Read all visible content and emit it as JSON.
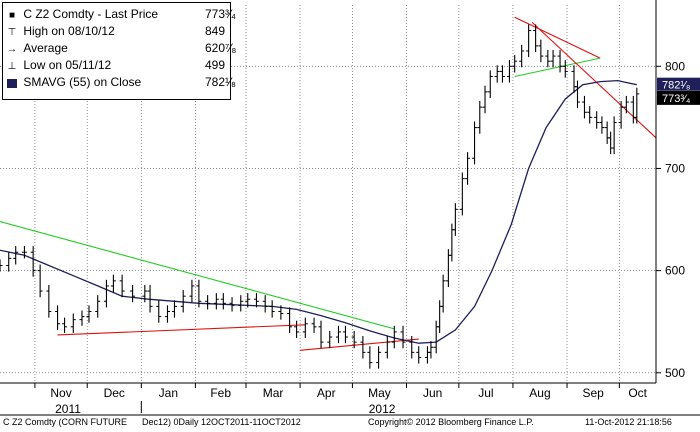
{
  "chart_data": {
    "type": "line",
    "title": "C Z2 Comdty - Last Price",
    "last_price_label": "773³⁄₄",
    "sma_label": "782¹⁄₈",
    "y_axis": {
      "min": 490,
      "max": 860,
      "ticks": [
        500,
        600,
        700,
        800
      ],
      "position": "right"
    },
    "x_axis": {
      "months": [
        "Nov",
        "Dec",
        "Jan",
        "Feb",
        "Mar",
        "Apr",
        "May",
        "Jun",
        "Jul",
        "Aug",
        "Sep",
        "Oct"
      ],
      "years": [
        "2011",
        "2012"
      ]
    },
    "grid": true,
    "legend": {
      "placement": "top-left",
      "entries": [
        {
          "symbol": "⊤",
          "label": "High on 08/10/12",
          "value": "849"
        },
        {
          "symbol": "→",
          "label": "Average",
          "value": "620⁷⁄₈"
        },
        {
          "symbol": "⊥",
          "label": "Low on 05/11/12",
          "value": "499"
        },
        {
          "symbol": "swatch",
          "label": "SMAVG (55) on Close",
          "value": "782¹⁄₈"
        }
      ]
    },
    "colors": {
      "price": "#000000",
      "sma": "#1f1f5a",
      "trend_green": "#22cc22",
      "trend_red": "#dd1111",
      "grid": "#777777"
    },
    "series": [
      {
        "name": "C Z2 Comdty - Last Price",
        "kind": "ohlc",
        "points": [
          [
            "2011-10-12",
            605
          ],
          [
            "2011-10-17",
            612
          ],
          [
            "2011-10-21",
            618
          ],
          [
            "2011-10-26",
            618
          ],
          [
            "2011-10-31",
            600
          ],
          [
            "2011-11-04",
            580
          ],
          [
            "2011-11-09",
            560
          ],
          [
            "2011-11-14",
            548
          ],
          [
            "2011-11-18",
            545
          ],
          [
            "2011-11-23",
            552
          ],
          [
            "2011-11-28",
            555
          ],
          [
            "2011-12-02",
            560
          ],
          [
            "2011-12-07",
            570
          ],
          [
            "2011-12-12",
            585
          ],
          [
            "2011-12-16",
            590
          ],
          [
            "2011-12-21",
            580
          ],
          [
            "2011-12-27",
            575
          ],
          [
            "2012-01-03",
            580
          ],
          [
            "2012-01-06",
            565
          ],
          [
            "2012-01-11",
            555
          ],
          [
            "2012-01-16",
            560
          ],
          [
            "2012-01-20",
            565
          ],
          [
            "2012-01-25",
            575
          ],
          [
            "2012-01-30",
            585
          ],
          [
            "2012-02-03",
            570
          ],
          [
            "2012-02-08",
            568
          ],
          [
            "2012-02-13",
            572
          ],
          [
            "2012-02-17",
            568
          ],
          [
            "2012-02-22",
            566
          ],
          [
            "2012-02-27",
            570
          ],
          [
            "2012-03-02",
            572
          ],
          [
            "2012-03-07",
            570
          ],
          [
            "2012-03-12",
            565
          ],
          [
            "2012-03-16",
            560
          ],
          [
            "2012-03-21",
            558
          ],
          [
            "2012-03-26",
            545
          ],
          [
            "2012-03-30",
            540
          ],
          [
            "2012-04-04",
            548
          ],
          [
            "2012-04-09",
            545
          ],
          [
            "2012-04-13",
            530
          ],
          [
            "2012-04-18",
            535
          ],
          [
            "2012-04-23",
            540
          ],
          [
            "2012-04-27",
            535
          ],
          [
            "2012-05-02",
            530
          ],
          [
            "2012-05-07",
            520
          ],
          [
            "2012-05-11",
            510
          ],
          [
            "2012-05-16",
            520
          ],
          [
            "2012-05-21",
            530
          ],
          [
            "2012-05-25",
            540
          ],
          [
            "2012-05-30",
            530
          ],
          [
            "2012-06-04",
            520
          ],
          [
            "2012-06-08",
            515
          ],
          [
            "2012-06-13",
            520
          ],
          [
            "2012-06-15",
            525
          ],
          [
            "2012-06-18",
            545
          ],
          [
            "2012-06-20",
            565
          ],
          [
            "2012-06-22",
            590
          ],
          [
            "2012-06-25",
            615
          ],
          [
            "2012-06-27",
            640
          ],
          [
            "2012-06-29",
            660
          ],
          [
            "2012-07-03",
            690
          ],
          [
            "2012-07-06",
            710
          ],
          [
            "2012-07-10",
            740
          ],
          [
            "2012-07-13",
            760
          ],
          [
            "2012-07-16",
            775
          ],
          [
            "2012-07-19",
            790
          ],
          [
            "2012-07-23",
            795
          ],
          [
            "2012-07-26",
            790
          ],
          [
            "2012-07-30",
            800
          ],
          [
            "2012-08-02",
            805
          ],
          [
            "2012-08-06",
            815
          ],
          [
            "2012-08-10",
            835
          ],
          [
            "2012-08-14",
            820
          ],
          [
            "2012-08-17",
            810
          ],
          [
            "2012-08-21",
            805
          ],
          [
            "2012-08-24",
            810
          ],
          [
            "2012-08-28",
            800
          ],
          [
            "2012-08-31",
            795
          ],
          [
            "2012-09-05",
            780
          ],
          [
            "2012-09-07",
            765
          ],
          [
            "2012-09-11",
            755
          ],
          [
            "2012-09-14",
            750
          ],
          [
            "2012-09-18",
            745
          ],
          [
            "2012-09-21",
            740
          ],
          [
            "2012-09-24",
            730
          ],
          [
            "2012-09-26",
            720
          ],
          [
            "2012-09-28",
            745
          ],
          [
            "2012-10-02",
            760
          ],
          [
            "2012-10-05",
            765
          ],
          [
            "2012-10-09",
            750
          ],
          [
            "2012-10-11",
            773
          ]
        ]
      },
      {
        "name": "SMAVG (55) on Close",
        "points": [
          [
            "2011-10-12",
            620
          ],
          [
            "2011-10-26",
            615
          ],
          [
            "2011-11-09",
            605
          ],
          [
            "2011-11-23",
            595
          ],
          [
            "2011-12-07",
            585
          ],
          [
            "2011-12-21",
            575
          ],
          [
            "2012-01-05",
            572
          ],
          [
            "2012-01-20",
            570
          ],
          [
            "2012-02-03",
            568
          ],
          [
            "2012-02-17",
            567
          ],
          [
            "2012-03-02",
            566
          ],
          [
            "2012-03-16",
            565
          ],
          [
            "2012-03-30",
            562
          ],
          [
            "2012-04-13",
            556
          ],
          [
            "2012-04-27",
            549
          ],
          [
            "2012-05-11",
            541
          ],
          [
            "2012-05-25",
            534
          ],
          [
            "2012-06-08",
            529
          ],
          [
            "2012-06-18",
            530
          ],
          [
            "2012-06-29",
            542
          ],
          [
            "2012-07-10",
            565
          ],
          [
            "2012-07-20",
            600
          ],
          [
            "2012-07-31",
            645
          ],
          [
            "2012-08-10",
            700
          ],
          [
            "2012-08-20",
            740
          ],
          [
            "2012-08-31",
            768
          ],
          [
            "2012-09-10",
            782
          ],
          [
            "2012-09-20",
            785
          ],
          [
            "2012-09-30",
            786
          ],
          [
            "2012-10-11",
            782
          ]
        ]
      }
    ],
    "trendlines": [
      {
        "color": "green",
        "from": [
          "2011-10-12",
          648
        ],
        "to": [
          "2012-05-25",
          543
        ]
      },
      {
        "color": "red",
        "from": [
          "2011-11-14",
          537
        ],
        "to": [
          "2012-04-04",
          547
        ]
      },
      {
        "color": "red",
        "from": [
          "2012-04-01",
          522
        ],
        "to": [
          "2012-06-08",
          533
        ]
      },
      {
        "color": "red",
        "from": [
          "2012-08-02",
          848
        ],
        "to": [
          "2012-09-20",
          808
        ]
      },
      {
        "color": "green",
        "from": [
          "2012-08-02",
          790
        ],
        "to": [
          "2012-09-20",
          808
        ]
      },
      {
        "color": "red",
        "from": [
          "2012-08-12",
          843
        ],
        "to": [
          "2012-10-22",
          730
        ]
      }
    ]
  },
  "footer": {
    "left": "C Z2 Comdty (CORN FUTURE",
    "middle": "Dec12) 0Daily 12OCT2011-11OCT2012",
    "copyright": "Copyright© 2012 Bloomberg Finance L.P.",
    "timestamp": "11-Oct-2012 21:18:56"
  }
}
